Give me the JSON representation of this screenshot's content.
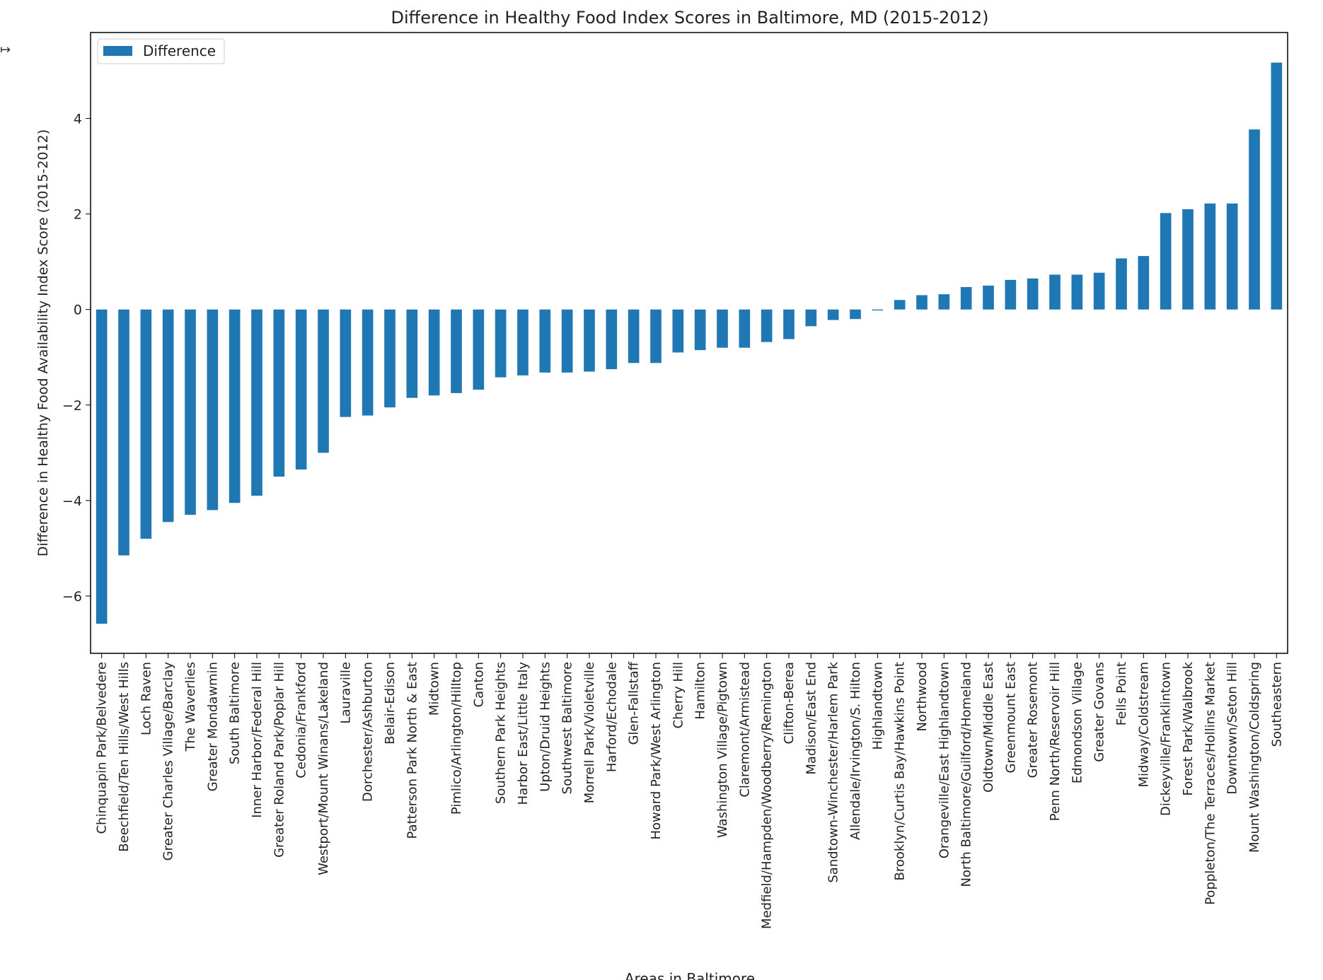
{
  "chart_data": {
    "type": "bar",
    "title": "Difference in Healthy Food Index Scores in Baltimore, MD (2015-2012)",
    "xlabel": "Areas in Baltimore",
    "ylabel": "Difference in Healthy Food Availability Index Score (2015-2012)",
    "ylim": [
      -7.2,
      5.8
    ],
    "yticks": [
      -6,
      -4,
      -2,
      0,
      2,
      4
    ],
    "ytick_labels": [
      "−6",
      "−4",
      "−2",
      "0",
      "2",
      "4"
    ],
    "grid": false,
    "legend": {
      "placement": "top-left",
      "entries": [
        "Difference"
      ]
    },
    "bar_color": "#1f77b4",
    "categories": [
      "Chinquapin Park/Belvedere",
      "Beechfield/Ten Hills/West Hills",
      "Loch Raven",
      "Greater Charles Village/Barclay",
      "The Waverlies",
      "Greater Mondawmin",
      "South Baltimore",
      "Inner Harbor/Federal Hill",
      "Greater Roland Park/Poplar Hill",
      "Cedonia/Frankford",
      "Westport/Mount Winans/Lakeland",
      "Lauraville",
      "Dorchester/Ashburton",
      "Belair-Edison",
      "Patterson Park North & East",
      "Midtown",
      "Pimlico/Arlington/Hilltop",
      "Canton",
      "Southern Park Heights",
      "Harbor East/Little Italy",
      "Upton/Druid Heights",
      "Southwest Baltimore",
      "Morrell Park/Violetville",
      "Harford/Echodale",
      "Glen-Fallstaff",
      "Howard Park/West Arlington",
      "Cherry Hill",
      "Hamilton",
      "Washington Village/Pigtown",
      "Claremont/Armistead",
      "Medfield/Hampden/Woodberry/Remington",
      "Clifton-Berea",
      "Madison/East End",
      "Sandtown-Winchester/Harlem Park",
      "Allendale/Irvington/S. Hilton",
      "Highlandtown",
      "Brooklyn/Curtis Bay/Hawkins Point",
      "Northwood",
      "Orangeville/East Highlandtown",
      "North Baltimore/Guilford/Homeland",
      "Oldtown/Middle East",
      "Greenmount East",
      "Greater Rosemont",
      "Penn North/Reservoir Hill",
      "Edmondson Village",
      "Greater Govans",
      "Fells Point",
      "Midway/Coldstream",
      "Dickeyville/Franklintown",
      "Forest Park/Walbrook",
      "Poppleton/The Terraces/Hollins Market",
      "Downtown/Seton Hill",
      "Mount Washington/Coldspring",
      "Southeastern"
    ],
    "series": [
      {
        "name": "Difference",
        "values": [
          -6.58,
          -5.15,
          -4.8,
          -4.45,
          -4.3,
          -4.2,
          -4.05,
          -3.9,
          -3.5,
          -3.35,
          -3.0,
          -2.25,
          -2.22,
          -2.05,
          -1.85,
          -1.8,
          -1.75,
          -1.68,
          -1.42,
          -1.38,
          -1.32,
          -1.32,
          -1.3,
          -1.25,
          -1.12,
          -1.12,
          -0.9,
          -0.85,
          -0.8,
          -0.8,
          -0.68,
          -0.62,
          -0.35,
          -0.22,
          -0.2,
          -0.02,
          0.2,
          0.3,
          0.32,
          0.47,
          0.5,
          0.62,
          0.65,
          0.73,
          0.73,
          0.77,
          1.07,
          1.12,
          2.02,
          2.1,
          2.22,
          2.22,
          3.77,
          5.17
        ]
      }
    ]
  },
  "misc": {
    "stray_glyph": "↦"
  }
}
